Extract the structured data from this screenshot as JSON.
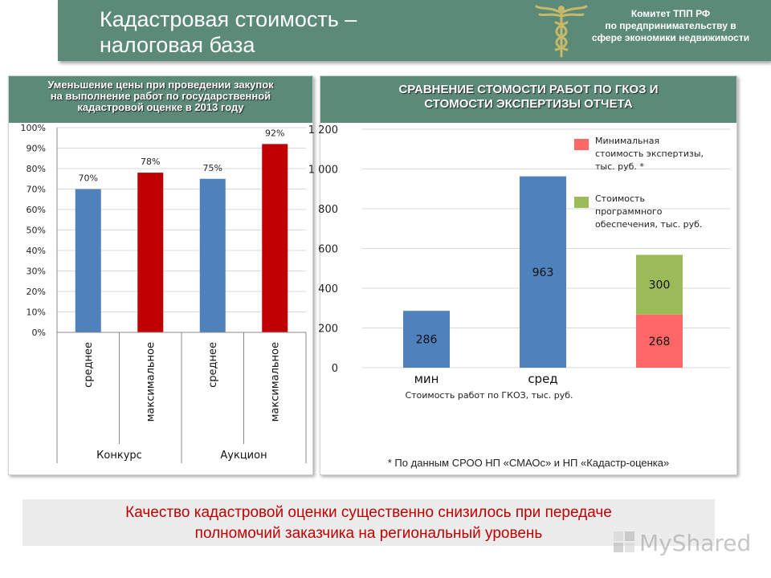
{
  "header": {
    "title_line1": "Кадастровая стоимость –",
    "title_line2": "налоговая база",
    "committee_line1": "Комитет ТПП РФ",
    "committee_line2": "по предпринимательству в",
    "committee_line3": "сфере экономики недвижимости"
  },
  "left_panel": {
    "title_line1": "Уменьшение цены при проведении закупок",
    "title_line2": "на выполнение работ по государственной",
    "title_line3": "кадастровой оценке в 2013 году"
  },
  "right_panel": {
    "title_line1": "СРАВНЕНИЕ СТОМОСТИ РАБОТ ПО ГКОЗ И",
    "title_line2": "СТОМОСТИ ЭКСПЕРТИЗЫ ОТЧЕТА",
    "footnote": "* По данным СРОО НП «СМАОс» и НП «Кадастр-оценка»"
  },
  "bottom": {
    "line1": "Качество кадастровой оценки существенно снизилось при передаче",
    "line2": "полномочий заказчика на региональный уровень"
  },
  "watermark": {
    "text": "MyShared"
  },
  "colors": {
    "header_bg": "#5b8a78",
    "blue": "#4f81bd",
    "red": "#c00000",
    "salmon": "#ff6666",
    "green": "#9bbb59",
    "accent_text": "#c00000"
  },
  "chart_data": [
    {
      "type": "bar",
      "categories": [
        "среднее",
        "максимальное",
        "среднее",
        "максимальное"
      ],
      "groups": [
        {
          "label": "Конкурс",
          "categories": [
            "среднее",
            "максимальное"
          ]
        },
        {
          "label": "Аукцион",
          "categories": [
            "среднее",
            "максимальное"
          ]
        }
      ],
      "values": [
        70,
        78,
        75,
        92
      ],
      "data_labels": [
        "70%",
        "78%",
        "75%",
        "92%"
      ],
      "bar_colors": [
        "#4f81bd",
        "#c00000",
        "#4f81bd",
        "#c00000"
      ],
      "ylim": [
        0,
        100
      ],
      "yticks": [
        0,
        10,
        20,
        30,
        40,
        50,
        60,
        70,
        80,
        90,
        100
      ],
      "ytick_labels": [
        "0%",
        "10%",
        "20%",
        "30%",
        "40%",
        "50%",
        "60%",
        "70%",
        "80%",
        "90%",
        "100%"
      ],
      "grid": true
    },
    {
      "type": "bar",
      "categories": [
        "мин",
        "сред",
        ""
      ],
      "xlabel": "Стоимость работ по ГКОЗ, тыс. руб.",
      "series": [
        {
          "values": [
            286,
            963,
            null
          ],
          "color": "#4f81bd"
        },
        {
          "name": "Минимальная стоимость экспертизы, тыс. руб. *",
          "values": [
            null,
            null,
            268
          ],
          "color": "#ff6666"
        },
        {
          "name": "Стоимость программного обеспечения, тыс. руб.",
          "values": [
            null,
            null,
            300
          ],
          "color": "#9bbb59"
        }
      ],
      "stacked": true,
      "ylim": [
        0,
        1200
      ],
      "yticks": [
        0,
        200,
        400,
        600,
        800,
        1000,
        1200
      ],
      "ytick_labels": [
        "0",
        "200",
        "400",
        "600",
        "800",
        "1 000",
        "1 200"
      ],
      "legend_position": "top-right",
      "grid": true
    }
  ]
}
